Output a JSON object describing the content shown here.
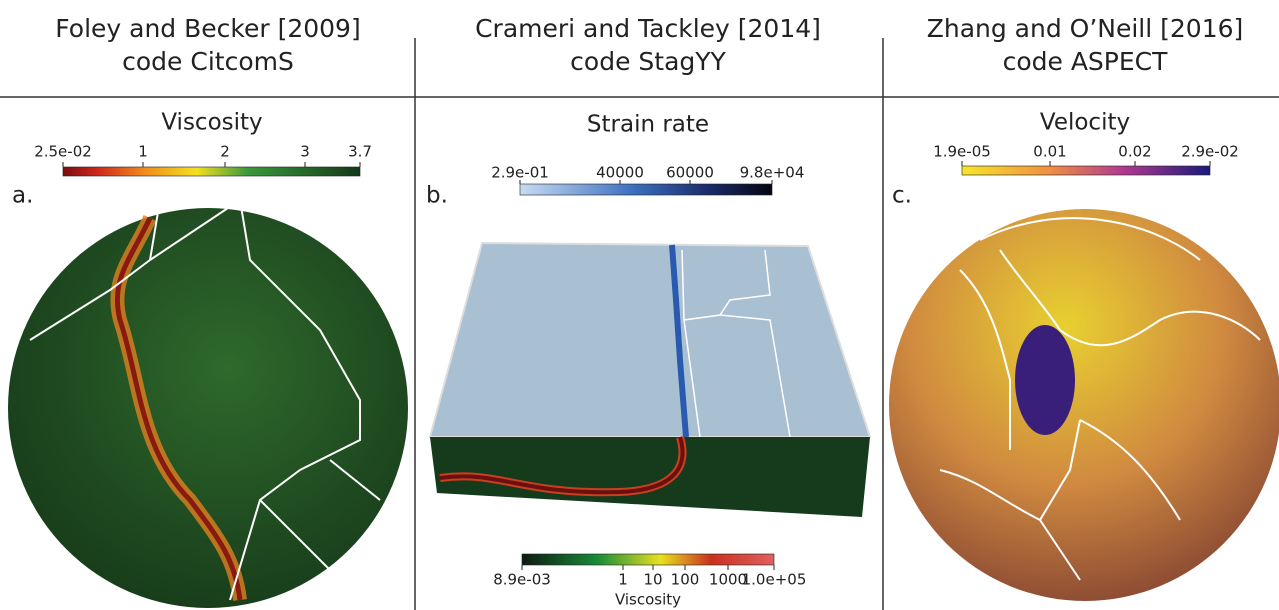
{
  "columns": [
    {
      "title": "Foley and Becker [2009]",
      "code": "code CitcomS",
      "letter": "a.",
      "colorbar": {
        "label": "Viscosity",
        "ticks": [
          "2.5e-02",
          "1",
          "2",
          "3",
          "3.7"
        ]
      }
    },
    {
      "title": "Crameri and Tackley [2014]",
      "code": "code StagYY",
      "letter": "b.",
      "colorbar": {
        "label": "Strain rate",
        "ticks": [
          "2.9e-01",
          "40000",
          "60000",
          "9.8e+04"
        ]
      },
      "colorbar2": {
        "label": "Viscosity",
        "ticks": [
          "8.9e-03",
          "1",
          "10",
          "100",
          "1000",
          "1.0e+05"
        ]
      }
    },
    {
      "title": "Zhang and O’Neill [2016]",
      "code": "code ASPECT",
      "letter": "c.",
      "colorbar": {
        "label": "Velocity",
        "ticks": [
          "1.9e-05",
          "0.01",
          "0.02",
          "2.9e-02"
        ]
      }
    }
  ]
}
